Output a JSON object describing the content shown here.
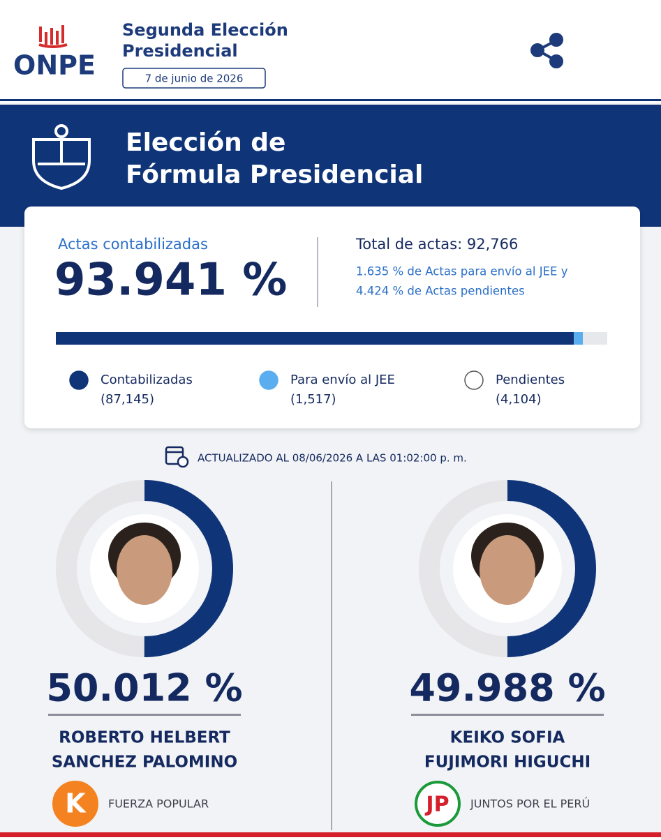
{
  "header": {
    "logo": "ONPE",
    "title_lines": [
      "Segunda Elección",
      "Presidencial"
    ],
    "date": "7 de junio de 2026"
  },
  "banner": {
    "title_lines": [
      "Elección de",
      "Fórmula Presidencial"
    ]
  },
  "summary": {
    "counted_label": "Actas contabilizadas",
    "counted": "93.941 %",
    "total": "Total de actas: 92,766",
    "notes": [
      "1.635 % de Actas para envío al JEE y",
      "4.424 % de Actas pendientes"
    ],
    "legend": [
      {
        "name": "Contabilizadas",
        "count": {
          "value": 87145,
          "label": "(87,145)"
        },
        "color": "#0f3478"
      },
      {
        "name": "Para envío al JEE",
        "count": {
          "value": 1517,
          "label": "(1,517)"
        },
        "color": "#5aaef0"
      },
      {
        "name": "Pendientes",
        "count": {
          "value": 4104,
          "label": "(4,104)"
        },
        "color": "#e6e8ec"
      }
    ]
  },
  "updated": "ACTUALIZADO AL 08/06/2026 A LAS 01:02:00 p. m.",
  "candidates": [
    {
      "pct": {
        "value": 50.012,
        "label": "50.012 %"
      },
      "name_lines": [
        "ROBERTO HELBERT",
        "SANCHEZ PALOMINO"
      ],
      "party_logo": "K",
      "party": "FUERZA POPULAR"
    },
    {
      "pct": {
        "value": 49.988,
        "label": "49.988 %"
      },
      "name_lines": [
        "KEIKO SOFIA",
        "FUJIMORI HIGUCHI"
      ],
      "party_logo": "JP",
      "party": "JUNTOS POR EL PERÚ"
    }
  ]
}
